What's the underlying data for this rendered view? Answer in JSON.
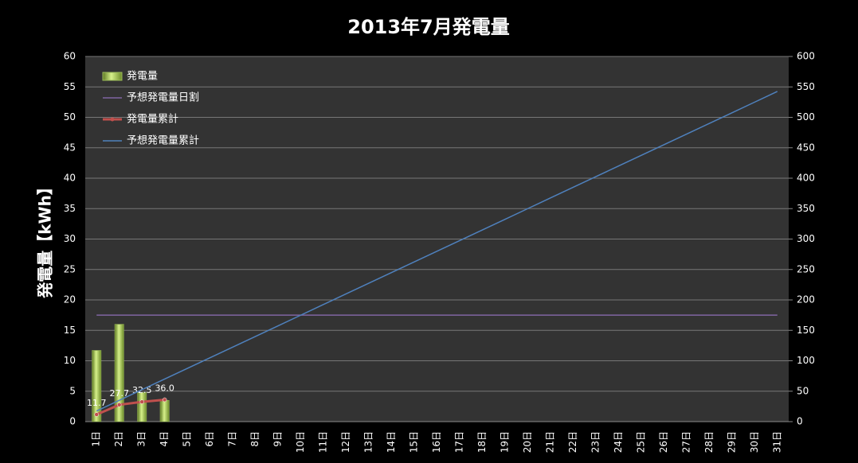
{
  "chart_data": {
    "type": "bar",
    "title": "2013年7月発電量",
    "y_label": "発電量【kWh】",
    "categories": [
      "1日",
      "2日",
      "3日",
      "4日",
      "5日",
      "6日",
      "7日",
      "8日",
      "9日",
      "10日",
      "11日",
      "12日",
      "13日",
      "14日",
      "15日",
      "16日",
      "17日",
      "18日",
      "19日",
      "20日",
      "21日",
      "22日",
      "23日",
      "24日",
      "25日",
      "26日",
      "27日",
      "28日",
      "29日",
      "30日",
      "31日"
    ],
    "ylim": [
      0,
      60
    ],
    "yticks": [
      0,
      5,
      10,
      15,
      20,
      25,
      30,
      35,
      40,
      45,
      50,
      55,
      60
    ],
    "y2lim": [
      0,
      600
    ],
    "y2ticks": [
      0,
      50,
      100,
      150,
      200,
      250,
      300,
      350,
      400,
      450,
      500,
      550,
      600
    ],
    "grid": true,
    "legend": "upper left",
    "series": [
      {
        "name": "発電量",
        "type": "bar",
        "color": "#9bbb59",
        "values": [
          11.7,
          16.0,
          4.8,
          3.5,
          null,
          null,
          null,
          null,
          null,
          null,
          null,
          null,
          null,
          null,
          null,
          null,
          null,
          null,
          null,
          null,
          null,
          null,
          null,
          null,
          null,
          null,
          null,
          null,
          null,
          null,
          null
        ]
      },
      {
        "name": "予想発電量日割",
        "type": "line",
        "color": "#8064a2",
        "values": [
          17.5,
          17.5,
          17.5,
          17.5,
          17.5,
          17.5,
          17.5,
          17.5,
          17.5,
          17.5,
          17.5,
          17.5,
          17.5,
          17.5,
          17.5,
          17.5,
          17.5,
          17.5,
          17.5,
          17.5,
          17.5,
          17.5,
          17.5,
          17.5,
          17.5,
          17.5,
          17.5,
          17.5,
          17.5,
          17.5,
          17.5
        ]
      },
      {
        "name": "発電量累計",
        "type": "line",
        "axis": "y2",
        "color": "#c0504d",
        "markers": true,
        "values": [
          11.7,
          27.7,
          32.5,
          36.0,
          null,
          null,
          null,
          null,
          null,
          null,
          null,
          null,
          null,
          null,
          null,
          null,
          null,
          null,
          null,
          null,
          null,
          null,
          null,
          null,
          null,
          null,
          null,
          null,
          null,
          null,
          null
        ],
        "value_labels": [
          "11.7",
          "27.7",
          "32.5",
          "36.0",
          null,
          null,
          null,
          null,
          null,
          null,
          null,
          null,
          null,
          null,
          null,
          null,
          null,
          null,
          null,
          null,
          null,
          null,
          null,
          null,
          null,
          null,
          null,
          null,
          null,
          null,
          null
        ]
      },
      {
        "name": "予想発電量累計",
        "type": "line",
        "axis": "y2",
        "color": "#4f81bd",
        "values": [
          17.5,
          35,
          52.5,
          70,
          87.5,
          105,
          122.5,
          140,
          157.5,
          175,
          192.5,
          210,
          227.5,
          245,
          262.5,
          280,
          297.5,
          315,
          332.5,
          350,
          367.5,
          385,
          402.5,
          420,
          437.5,
          455,
          472.5,
          490,
          507.5,
          525,
          542.5
        ]
      }
    ]
  }
}
